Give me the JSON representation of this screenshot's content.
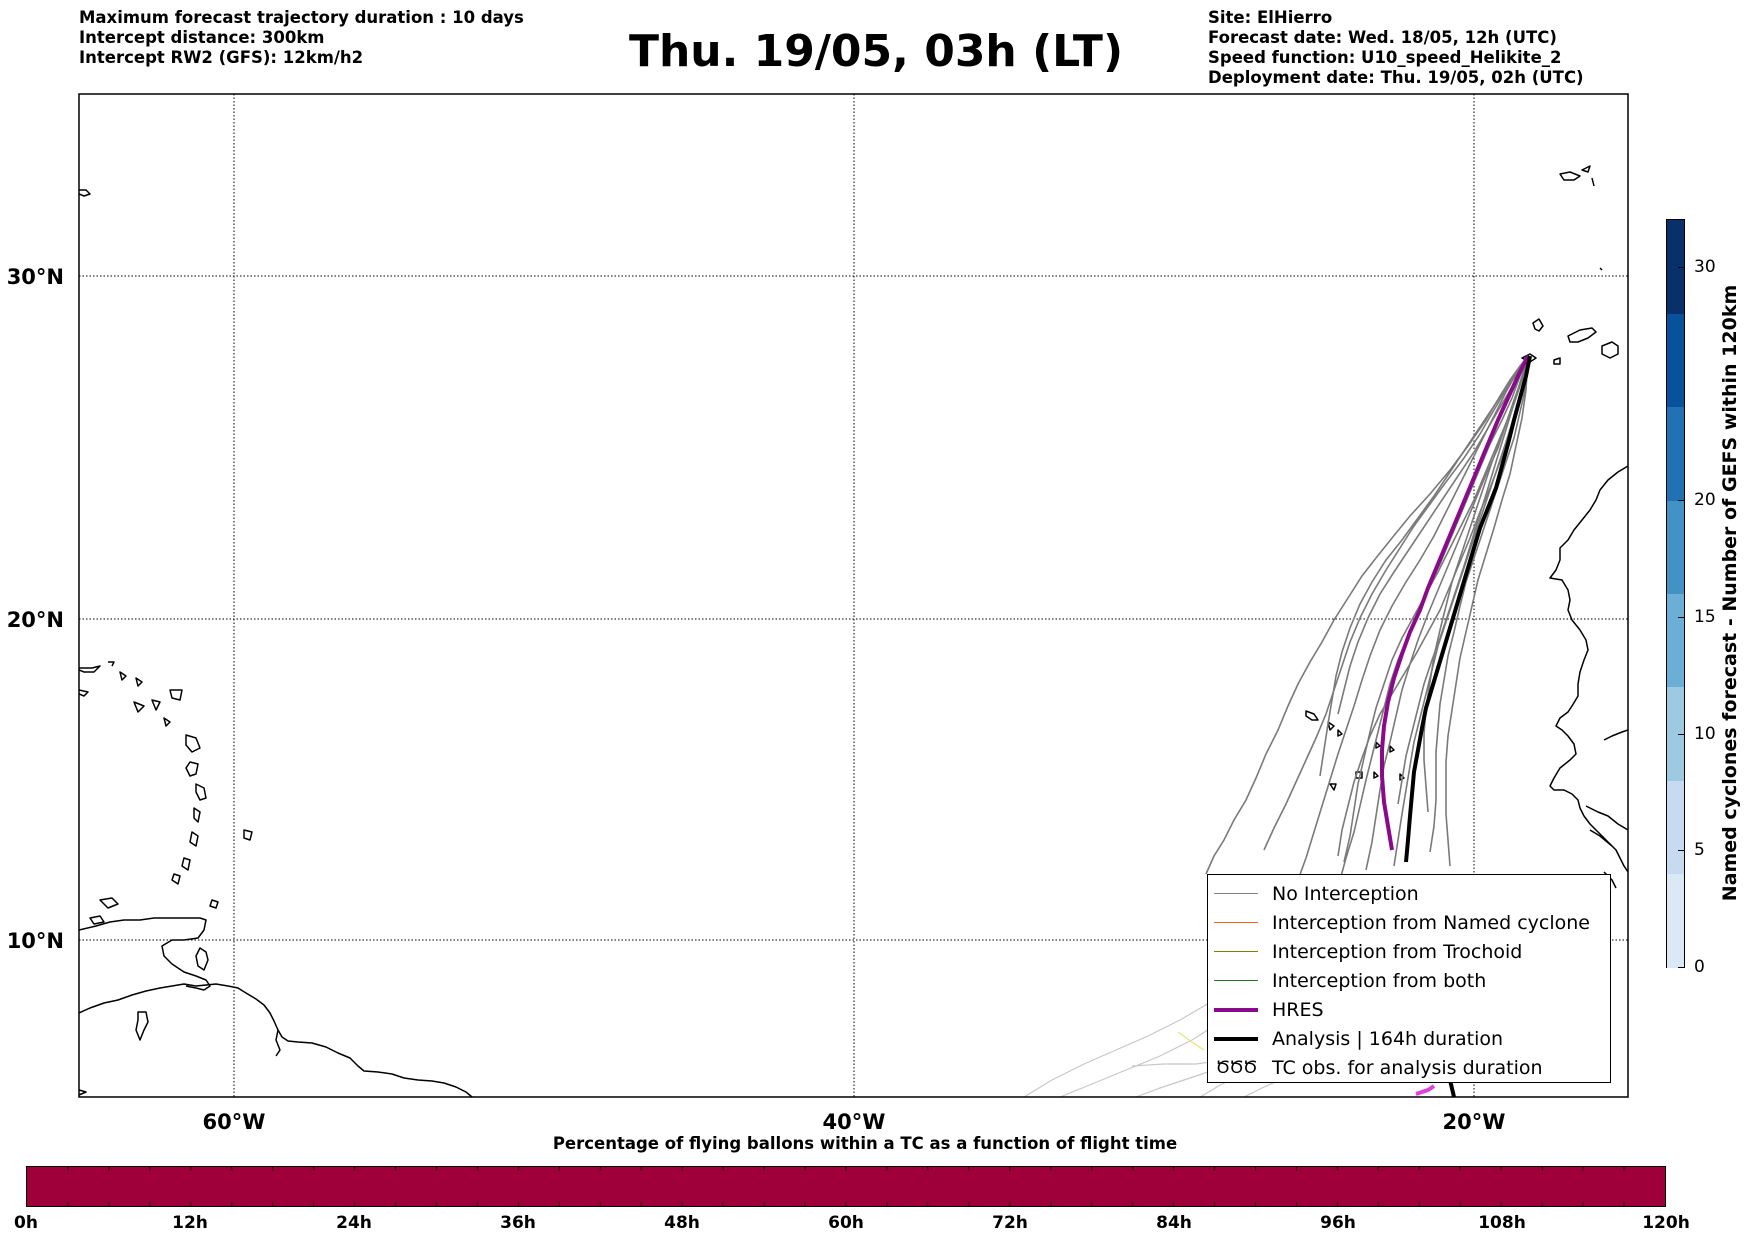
{
  "header": {
    "left_lines": [
      "Maximum forecast trajectory duration : 10 days",
      "Intercept distance: 300km",
      "Intercept RW2 (GFS):  12km/h2"
    ],
    "title": "Thu. 19/05, 03h (LT)",
    "right_lines": [
      "Site: ElHierro",
      "Forecast date: Wed. 18/05, 12h (UTC)",
      "Speed function: U10_speed_Helikite_2",
      "Deployment date: Thu. 19/05, 02h (UTC)"
    ]
  },
  "map": {
    "lat_labels": [
      "30°N",
      "20°N",
      "10°N"
    ],
    "lon_labels": [
      "60°W",
      "40°W",
      "20°W"
    ],
    "gridlines": "dotted",
    "colors": {
      "no_interception": "#7a7a7a",
      "faded_track": "#c8c8c8",
      "hres": "#8b0a8b",
      "analysis": "#000000",
      "coastline": "#000000",
      "yellow_track": "#e8e870",
      "magenta_tail": "#e040e0"
    }
  },
  "legend": {
    "items": [
      {
        "label": "No Interception",
        "color": "#808080",
        "width": 1.2
      },
      {
        "label": "Interception from Named cyclone",
        "color": "#ff5a1e",
        "width": 1.2
      },
      {
        "label": "Interception from Trochoid",
        "color": "#808000",
        "width": 1.2
      },
      {
        "label": "Interception from both",
        "color": "#1a7a1a",
        "width": 1.2
      },
      {
        "label": "HRES",
        "color": "#8b0a8b",
        "width": 4
      },
      {
        "label": "Analysis | 164h duration",
        "color": "#000000",
        "width": 4
      },
      {
        "label": "TC obs. for analysis duration",
        "glyph": "ԾԾԾ"
      }
    ]
  },
  "percentage_bar": {
    "title": "Percentage of flying ballons within a TC as a function of flight time",
    "color": "#a0003a",
    "ticks": [
      "0h",
      "12h",
      "24h",
      "36h",
      "48h",
      "60h",
      "72h",
      "84h",
      "96h",
      "108h",
      "120h"
    ]
  },
  "colorbar": {
    "title": "Named cyclones forecast - Number of GEFS within 120km",
    "min": 0,
    "max": 32,
    "ticks": [
      0,
      5,
      10,
      15,
      20,
      30
    ],
    "colors": [
      "#dbe9f6",
      "#c6dbef",
      "#9ecae1",
      "#6baed6",
      "#4292c6",
      "#2171b5",
      "#08519c",
      "#08306b"
    ]
  }
}
